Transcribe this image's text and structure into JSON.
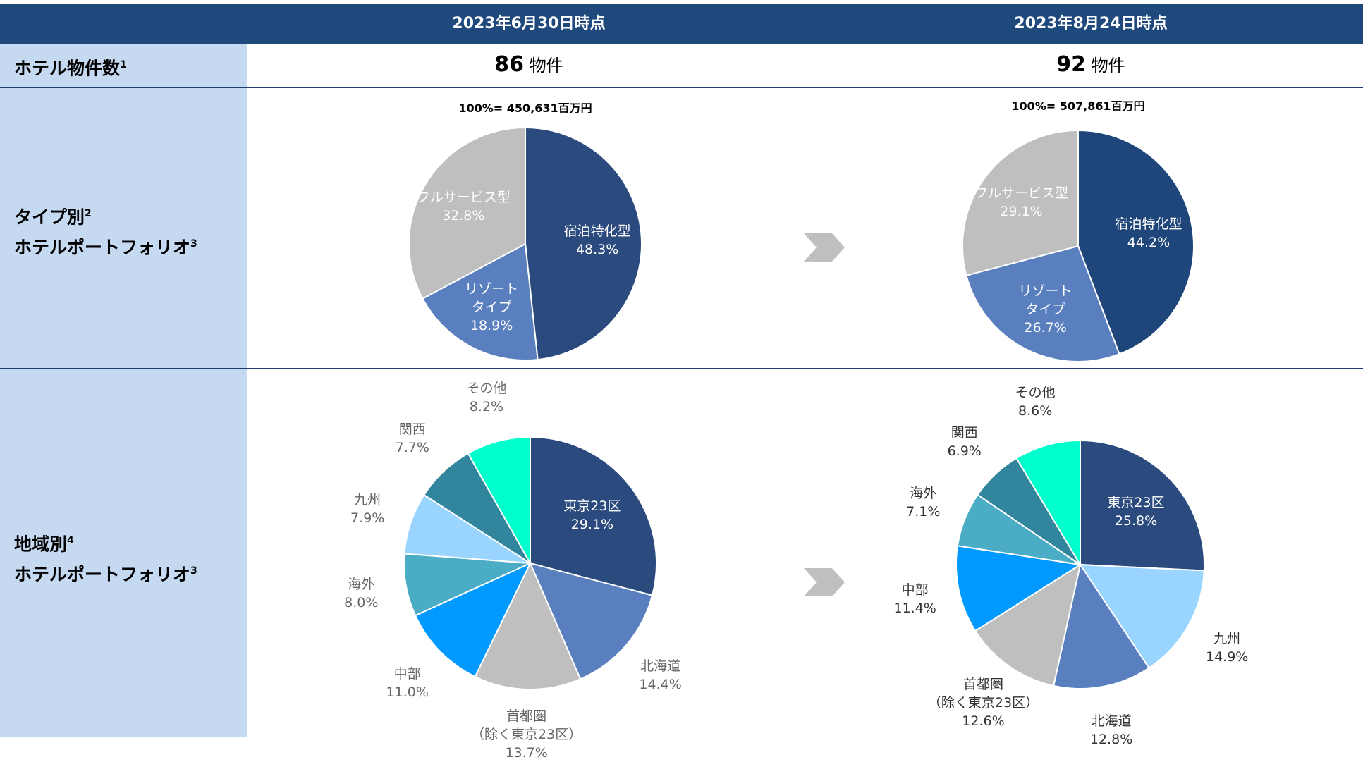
{
  "header": {
    "columns": [
      "2023年6月30日時点",
      "2023年8月24日時点"
    ]
  },
  "rows": [
    {
      "label": [
        {
          "text": "ホテル物件数",
          "sup": "1"
        }
      ]
    },
    {
      "label": [
        {
          "text": "タイプ別",
          "sup": "2"
        },
        {
          "text": "ホテルポートフォリオ",
          "sup": "3"
        }
      ]
    },
    {
      "label": [
        {
          "text": "地域別",
          "sup": "4"
        },
        {
          "text": "ホテルポートフォリオ",
          "sup": "3"
        }
      ]
    }
  ],
  "property_counts": {
    "values": [
      86,
      92
    ],
    "unit": "物件"
  },
  "chart_data": [
    {
      "type": "pie",
      "title": "100%= 450,631百万円",
      "categories": [
        "宿泊特化型",
        "リゾート\nタイプ",
        "フルサービス型"
      ],
      "values": [
        48.3,
        18.9,
        32.8
      ],
      "value_labels": [
        "48.3%",
        "18.9%",
        "32.8%"
      ],
      "colors": [
        "#2b4a7e",
        "#5a7fbf",
        "#bfbfbf"
      ]
    },
    {
      "type": "pie",
      "title": "100%= 507,861百万円",
      "categories": [
        "宿泊特化型",
        "リゾート\nタイプ",
        "フルサービス型"
      ],
      "values": [
        44.2,
        26.7,
        29.1
      ],
      "value_labels": [
        "44.2%",
        "26.7%",
        "29.1%"
      ],
      "colors": [
        "#1f467a",
        "#5a7fbf",
        "#bfbfbf"
      ]
    },
    {
      "type": "pie",
      "categories": [
        "東京23区",
        "北海道",
        "首都圏\n（除く東京23区）",
        "中部",
        "海外",
        "九州",
        "関西",
        "その他"
      ],
      "values": [
        29.1,
        14.4,
        13.7,
        11.0,
        8.0,
        7.9,
        7.7,
        8.2
      ],
      "value_labels": [
        "29.1%",
        "14.4%",
        "13.7%",
        "11.0%",
        "8.0%",
        "7.9%",
        "7.7%",
        "8.2%"
      ],
      "colors": [
        "#2b4a7e",
        "#5a7fbf",
        "#bfbfbf",
        "#0099ff",
        "#4bacc6",
        "#99d5ff",
        "#31859c",
        "#00ffcc"
      ]
    },
    {
      "type": "pie",
      "categories": [
        "東京23区",
        "九州",
        "北海道",
        "首都圏\n（除く東京23区）",
        "中部",
        "海外",
        "関西",
        "その他"
      ],
      "values": [
        25.8,
        14.9,
        12.8,
        12.6,
        11.4,
        7.1,
        6.9,
        8.6
      ],
      "value_labels": [
        "25.8%",
        "14.9%",
        "12.8%",
        "12.6%",
        "11.4%",
        "7.1%",
        "6.9%",
        "8.6%"
      ],
      "colors": [
        "#2b4a7e",
        "#99d5ff",
        "#5a7fbf",
        "#bfbfbf",
        "#0099ff",
        "#4bacc6",
        "#31859c",
        "#00ffcc"
      ]
    }
  ]
}
